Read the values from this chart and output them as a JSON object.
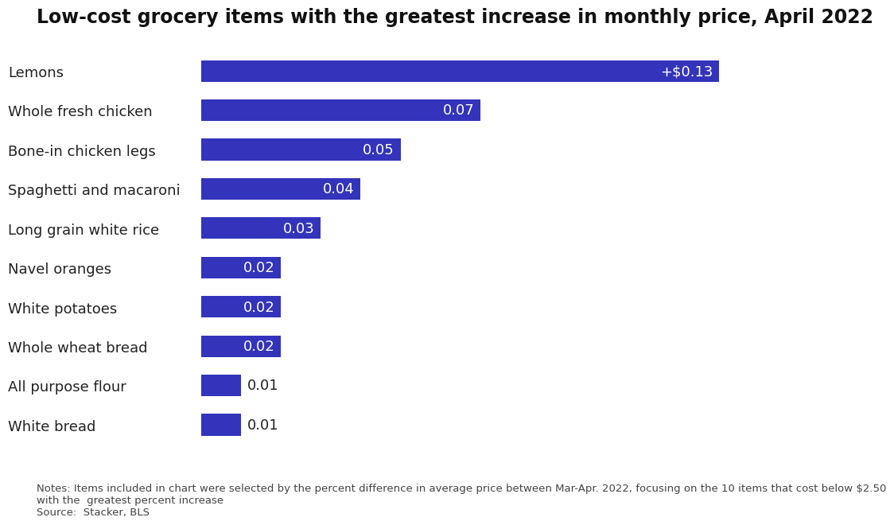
{
  "title": "Low-cost grocery items with the greatest increase in monthly price, April 2022",
  "categories": [
    "Lemons",
    "Whole fresh chicken",
    "Bone-in chicken legs",
    "Spaghetti and macaroni",
    "Long grain white rice",
    "Navel oranges",
    "White potatoes",
    "Whole wheat bread",
    "All purpose flour",
    "White bread"
  ],
  "values": [
    0.13,
    0.07,
    0.05,
    0.04,
    0.03,
    0.02,
    0.02,
    0.02,
    0.01,
    0.01
  ],
  "bar_color": "#3333BB",
  "label_color_inside": "#FFFFFF",
  "label_color_outside": "#222222",
  "bar_labels": [
    "+$0.13",
    "0.07",
    "0.05",
    "0.04",
    "0.03",
    "0.02",
    "0.02",
    "0.02",
    "0.01",
    "0.01"
  ],
  "notes_line1": "Notes: Items included in chart were selected by the percent difference in average price between Mar-Apr. 2022, focusing on the 10 items that cost below $2.50",
  "notes_line2": "with the  greatest percent increase",
  "notes_line3": "Source:  Stacker, BLS",
  "title_fontsize": 17,
  "label_fontsize": 13,
  "ytick_fontsize": 13,
  "notes_fontsize": 9.5,
  "background_color": "#FFFFFF"
}
